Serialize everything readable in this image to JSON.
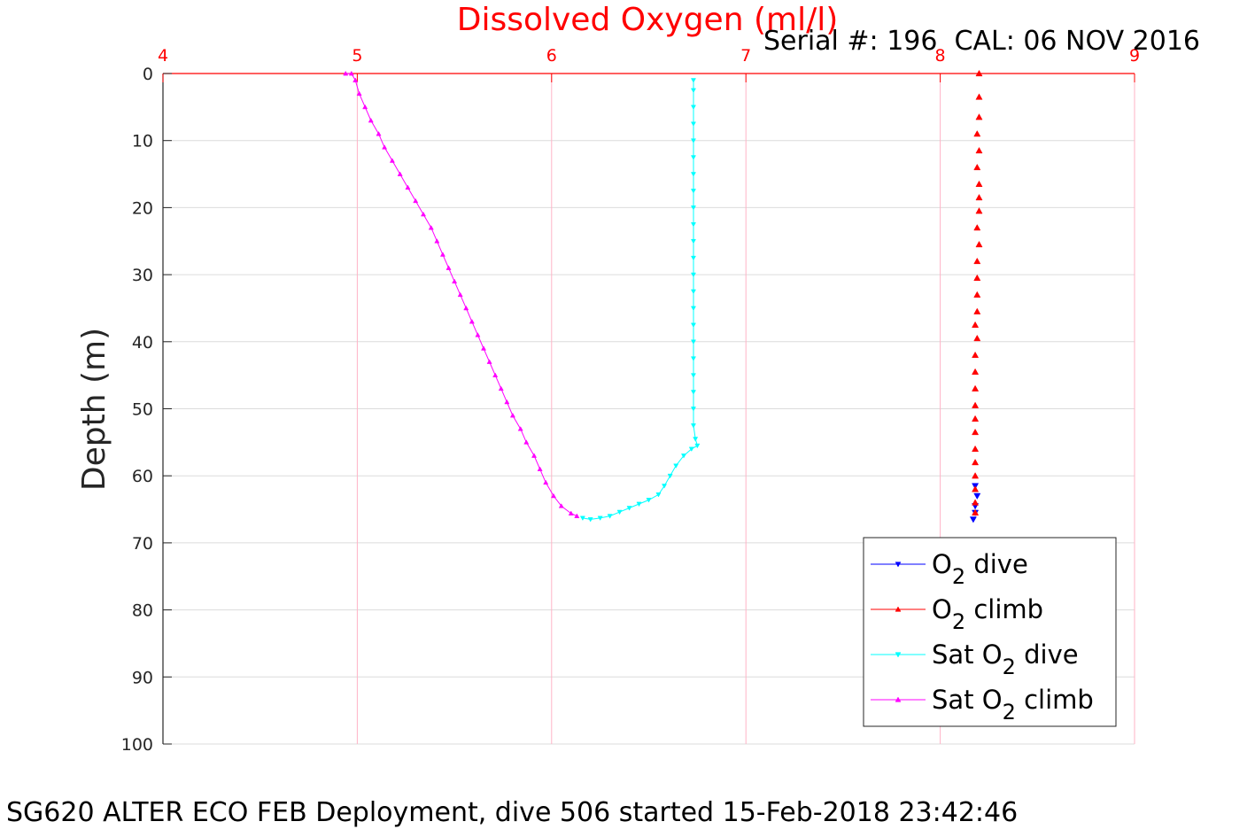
{
  "chart_data": {
    "type": "scatter",
    "title": "Dissolved Oxygen (ml/l)",
    "subtitle": "Serial #: 196  CAL: 06 NOV 2016",
    "footer": "SG620 ALTER ECO FEB Deployment, dive 506 started 15-Feb-2018 23:42:46",
    "xlabel": "",
    "ylabel": "Depth (m)",
    "xlim": [
      4,
      9
    ],
    "ylim": [
      0,
      100
    ],
    "y_reversed": true,
    "x_axis_position": "top",
    "xticks": [
      4,
      5,
      6,
      7,
      8,
      9
    ],
    "yticks": [
      0,
      10,
      20,
      30,
      40,
      50,
      60,
      70,
      80,
      90,
      100
    ],
    "grid": true,
    "legend_position": "bottom-right",
    "colors": {
      "title": "#ff0000",
      "x_tick_labels": "#ff0000",
      "vertical_grid": "#ffb3c6",
      "horizontal_grid": "#dcdcdc",
      "o2_dive": "#0000ff",
      "o2_climb": "#ff0000",
      "sat_dive": "#00ffff",
      "sat_climb": "#ff00ff"
    },
    "series": [
      {
        "key": "o2_dive",
        "name": "O2 dive",
        "legend_main": "O",
        "legend_sub": "2",
        "legend_rest": " dive",
        "color": "#0000ff",
        "marker": "triangle-down",
        "connected": false,
        "points": [
          [
            8.18,
            61.5
          ],
          [
            8.19,
            63.0
          ],
          [
            8.18,
            64.5
          ],
          [
            8.18,
            65.5
          ],
          [
            8.17,
            66.5
          ]
        ]
      },
      {
        "key": "o2_climb",
        "name": "O2 climb",
        "legend_main": "O",
        "legend_sub": "2",
        "legend_rest": " climb",
        "color": "#ff0000",
        "marker": "triangle-up",
        "connected": false,
        "points": [
          [
            8.2,
            0
          ],
          [
            8.2,
            3.5
          ],
          [
            8.2,
            6.5
          ],
          [
            8.19,
            9.0
          ],
          [
            8.2,
            11.5
          ],
          [
            8.19,
            14.0
          ],
          [
            8.2,
            16.5
          ],
          [
            8.2,
            18.5
          ],
          [
            8.2,
            20.5
          ],
          [
            8.19,
            23.0
          ],
          [
            8.2,
            25.5
          ],
          [
            8.19,
            28.0
          ],
          [
            8.19,
            30.5
          ],
          [
            8.19,
            33.0
          ],
          [
            8.19,
            35.5
          ],
          [
            8.18,
            37.5
          ],
          [
            8.19,
            39.5
          ],
          [
            8.18,
            42.0
          ],
          [
            8.18,
            44.5
          ],
          [
            8.18,
            47.0
          ],
          [
            8.18,
            49.5
          ],
          [
            8.18,
            51.5
          ],
          [
            8.18,
            53.5
          ],
          [
            8.18,
            56.0
          ],
          [
            8.18,
            58.0
          ],
          [
            8.18,
            60.0
          ],
          [
            8.18,
            62.0
          ],
          [
            8.18,
            64.0
          ],
          [
            8.18,
            65.5
          ]
        ]
      },
      {
        "key": "sat_dive",
        "name": "Sat O2 dive",
        "legend_main": "Sat O",
        "legend_sub": "2",
        "legend_rest": " dive",
        "color": "#00ffff",
        "marker": "triangle-down",
        "connected": true,
        "points": [
          [
            6.73,
            1.0
          ],
          [
            6.73,
            2.5
          ],
          [
            6.73,
            5.0
          ],
          [
            6.73,
            7.5
          ],
          [
            6.73,
            10.0
          ],
          [
            6.73,
            12.5
          ],
          [
            6.73,
            15.0
          ],
          [
            6.73,
            17.5
          ],
          [
            6.73,
            20.0
          ],
          [
            6.73,
            22.5
          ],
          [
            6.73,
            25.0
          ],
          [
            6.73,
            27.5
          ],
          [
            6.73,
            30.0
          ],
          [
            6.73,
            32.5
          ],
          [
            6.73,
            35.0
          ],
          [
            6.73,
            37.5
          ],
          [
            6.73,
            40.0
          ],
          [
            6.73,
            42.5
          ],
          [
            6.73,
            45.0
          ],
          [
            6.73,
            47.5
          ],
          [
            6.73,
            50.0
          ],
          [
            6.73,
            52.5
          ],
          [
            6.74,
            54.5
          ],
          [
            6.75,
            55.5
          ],
          [
            6.72,
            56.0
          ],
          [
            6.68,
            57.0
          ],
          [
            6.64,
            58.5
          ],
          [
            6.61,
            60.0
          ],
          [
            6.58,
            61.5
          ],
          [
            6.55,
            62.8
          ],
          [
            6.5,
            63.6
          ],
          [
            6.45,
            64.2
          ],
          [
            6.4,
            64.8
          ],
          [
            6.35,
            65.4
          ],
          [
            6.3,
            66.0
          ],
          [
            6.25,
            66.3
          ],
          [
            6.2,
            66.5
          ],
          [
            6.16,
            66.3
          ]
        ]
      },
      {
        "key": "sat_climb",
        "name": "Sat O2 climb",
        "legend_main": "Sat O",
        "legend_sub": "2",
        "legend_rest": " climb",
        "color": "#ff00ff",
        "marker": "triangle-up",
        "connected": true,
        "points": [
          [
            4.94,
            0.0
          ],
          [
            4.97,
            0.0
          ],
          [
            4.99,
            1.0
          ],
          [
            5.01,
            3.0
          ],
          [
            5.04,
            5.0
          ],
          [
            5.07,
            7.0
          ],
          [
            5.11,
            9.0
          ],
          [
            5.14,
            11.0
          ],
          [
            5.18,
            13.0
          ],
          [
            5.22,
            15.0
          ],
          [
            5.26,
            17.0
          ],
          [
            5.3,
            19.0
          ],
          [
            5.34,
            21.0
          ],
          [
            5.38,
            23.0
          ],
          [
            5.41,
            25.0
          ],
          [
            5.44,
            27.0
          ],
          [
            5.47,
            29.0
          ],
          [
            5.5,
            31.0
          ],
          [
            5.53,
            33.0
          ],
          [
            5.56,
            35.0
          ],
          [
            5.59,
            37.0
          ],
          [
            5.62,
            39.0
          ],
          [
            5.65,
            41.0
          ],
          [
            5.68,
            43.0
          ],
          [
            5.71,
            45.0
          ],
          [
            5.74,
            47.0
          ],
          [
            5.77,
            49.0
          ],
          [
            5.8,
            51.0
          ],
          [
            5.84,
            53.0
          ],
          [
            5.87,
            55.0
          ],
          [
            5.91,
            57.0
          ],
          [
            5.94,
            59.0
          ],
          [
            5.97,
            61.0
          ],
          [
            6.01,
            63.0
          ],
          [
            6.05,
            64.5
          ],
          [
            6.1,
            65.6
          ],
          [
            6.13,
            66.0
          ]
        ]
      }
    ]
  }
}
